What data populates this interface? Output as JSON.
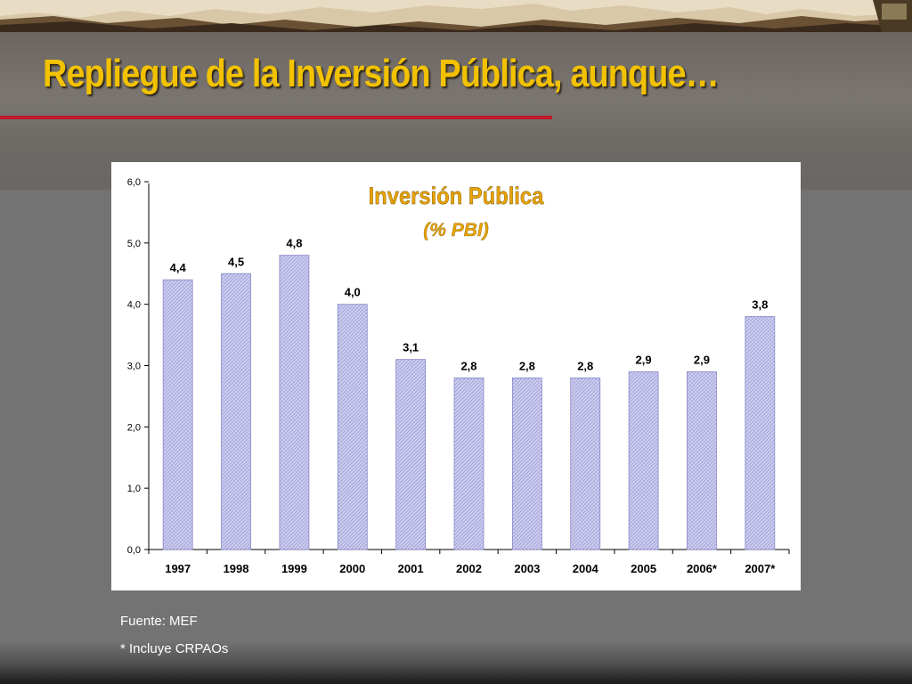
{
  "slide": {
    "title": "Repliegue de la Inversión Pública, aunque…"
  },
  "colors": {
    "title": "#f2c200",
    "title_rule": "#c0182a",
    "chart_title": "#e8a300",
    "bar_fill": "#c8c8ee",
    "bar_stroke": "#8888c8",
    "footnote": "#ffffff"
  },
  "chart_data": {
    "type": "bar",
    "title": "Inversión Pública",
    "subtitle": "(% PBI)",
    "categories": [
      "1997",
      "1998",
      "1999",
      "2000",
      "2001",
      "2002",
      "2003",
      "2004",
      "2005",
      "2006*",
      "2007*"
    ],
    "values": [
      4.4,
      4.5,
      4.8,
      4.0,
      3.1,
      2.8,
      2.8,
      2.8,
      2.9,
      2.9,
      3.8
    ],
    "value_labels": [
      "4,4",
      "4,5",
      "4,8",
      "4,0",
      "3,1",
      "2,8",
      "2,8",
      "2,8",
      "2,9",
      "2,9",
      "3,8"
    ],
    "yticks": [
      "0,0",
      "1,0",
      "2,0",
      "3,0",
      "4,0",
      "5,0",
      "6,0"
    ],
    "ylim": [
      0,
      6
    ],
    "grid": false,
    "legend": "none",
    "bar_pattern": "crosshatch"
  },
  "footnotes": {
    "source": "Fuente: MEF",
    "note": "* Incluye CRPAOs"
  }
}
